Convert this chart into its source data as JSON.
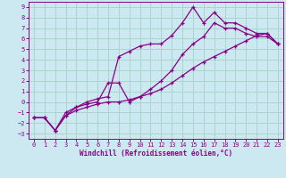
{
  "xlabel": "Windchill (Refroidissement éolien,°C)",
  "background_color": "#cce8f0",
  "grid_color": "#aad4cc",
  "line_color": "#880088",
  "xlim": [
    -0.5,
    23.5
  ],
  "ylim": [
    -3.5,
    9.5
  ],
  "yticks": [
    -3,
    -2,
    -1,
    0,
    1,
    2,
    3,
    4,
    5,
    6,
    7,
    8,
    9
  ],
  "xticks": [
    0,
    1,
    2,
    3,
    4,
    5,
    6,
    7,
    8,
    9,
    10,
    11,
    12,
    13,
    14,
    15,
    16,
    17,
    18,
    19,
    20,
    21,
    22,
    23
  ],
  "series": [
    {
      "x": [
        0,
        1,
        2,
        3,
        4,
        5,
        6,
        7,
        8,
        9,
        10,
        11,
        12,
        13,
        14,
        15,
        16,
        17,
        18,
        19,
        20,
        21,
        22,
        23
      ],
      "y": [
        -1.5,
        -1.5,
        -2.7,
        -1.3,
        -0.8,
        -0.5,
        -0.2,
        0.0,
        0.0,
        0.2,
        0.5,
        0.8,
        1.2,
        1.8,
        2.5,
        3.2,
        3.8,
        4.3,
        4.8,
        5.3,
        5.8,
        6.3,
        6.5,
        5.5
      ]
    },
    {
      "x": [
        0,
        1,
        2,
        3,
        4,
        5,
        6,
        7,
        8,
        9,
        10,
        11,
        12,
        13,
        14,
        15,
        16,
        17,
        18,
        19,
        20,
        21,
        22,
        23
      ],
      "y": [
        -1.5,
        -1.5,
        -2.7,
        -1.3,
        -0.5,
        -0.2,
        0.0,
        1.8,
        1.8,
        0.0,
        0.5,
        1.2,
        2.0,
        3.0,
        4.5,
        5.5,
        6.2,
        7.5,
        7.0,
        7.0,
        6.5,
        6.2,
        6.2,
        5.5
      ]
    },
    {
      "x": [
        0,
        1,
        2,
        3,
        4,
        5,
        6,
        7,
        8,
        9,
        10,
        11,
        12,
        13,
        14,
        15,
        16,
        17,
        18,
        19,
        20,
        21,
        22,
        23
      ],
      "y": [
        -1.5,
        -1.5,
        -2.7,
        -1.0,
        -0.5,
        0.0,
        0.3,
        0.5,
        4.3,
        4.8,
        5.3,
        5.5,
        5.5,
        6.3,
        7.5,
        9.0,
        7.5,
        8.5,
        7.5,
        7.5,
        7.0,
        6.5,
        6.5,
        5.5
      ]
    }
  ]
}
